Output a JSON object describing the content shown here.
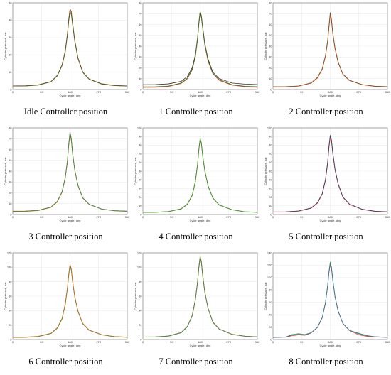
{
  "chart_data": [
    {
      "type": "line",
      "caption": "Idle Controller position",
      "xlabel": "Cycle angle, deg",
      "ylabel": "Cylinder pressure, bar",
      "xlim": [
        0,
        360
      ],
      "ylim": [
        0,
        50
      ],
      "xticks": [
        0,
        90,
        180,
        270,
        360
      ],
      "yticks": [
        0,
        10,
        20,
        30,
        40,
        50
      ],
      "grid": true,
      "x": [
        0,
        40,
        80,
        120,
        140,
        155,
        165,
        172,
        176,
        180,
        184,
        188,
        195,
        205,
        220,
        240,
        280,
        320,
        360
      ],
      "series": [
        {
          "color": "#e8402b",
          "values": [
            2.0,
            2.1,
            2.6,
            4.5,
            8.0,
            14.0,
            22.0,
            32.0,
            40.0,
            45.5,
            44.0,
            38.0,
            28.0,
            18.0,
            10.0,
            6.0,
            3.2,
            2.3,
            2.0
          ]
        },
        {
          "color": "#2f7a2f",
          "values": [
            2.0,
            2.0,
            2.5,
            4.4,
            7.8,
            13.8,
            21.6,
            31.5,
            39.5,
            44.5,
            43.2,
            37.4,
            27.6,
            17.8,
            9.9,
            5.9,
            3.1,
            2.2,
            2.0
          ]
        },
        {
          "color": "#7a4a1e",
          "values": [
            2.1,
            2.2,
            2.7,
            4.6,
            8.2,
            14.3,
            22.4,
            32.6,
            40.8,
            46.5,
            45.0,
            38.8,
            28.5,
            18.3,
            10.2,
            6.1,
            3.3,
            2.4,
            2.1
          ]
        }
      ]
    },
    {
      "type": "line",
      "caption": "1 Controller position",
      "xlabel": "Cycle angle, deg",
      "ylabel": "Cylinder pressure, bar",
      "xlim": [
        0,
        360
      ],
      "ylim": [
        0,
        80
      ],
      "xticks": [
        0,
        90,
        180,
        270,
        360
      ],
      "yticks": [
        0,
        10,
        20,
        30,
        40,
        50,
        60,
        70,
        80
      ],
      "grid": true,
      "x": [
        0,
        40,
        80,
        120,
        140,
        155,
        165,
        172,
        176,
        180,
        184,
        188,
        195,
        205,
        220,
        240,
        280,
        320,
        360
      ],
      "series": [
        {
          "color": "#3a2a1e",
          "values": [
            4.5,
            4.6,
            5.2,
            7.5,
            12.0,
            20.0,
            32.0,
            48.0,
            62.0,
            72.0,
            68.0,
            58.0,
            42.0,
            28.0,
            16.0,
            10.0,
            6.0,
            5.0,
            4.6
          ]
        },
        {
          "color": "#e8402b",
          "values": [
            2.0,
            2.1,
            2.8,
            5.5,
            10.0,
            18.0,
            30.0,
            46.0,
            60.0,
            70.0,
            66.0,
            56.0,
            40.0,
            26.0,
            14.5,
            8.5,
            4.0,
            2.6,
            2.1
          ]
        },
        {
          "color": "#2f7a2f",
          "values": [
            2.5,
            2.6,
            3.2,
            6.0,
            10.5,
            18.6,
            30.6,
            46.8,
            61.0,
            71.0,
            67.0,
            57.0,
            41.0,
            27.0,
            15.0,
            9.0,
            4.5,
            3.0,
            2.6
          ]
        }
      ]
    },
    {
      "type": "line",
      "caption": "2 Controller position",
      "xlabel": "Cycle angle, deg",
      "ylabel": "Cylinder pressure, bar",
      "xlim": [
        0,
        360
      ],
      "ylim": [
        0,
        80
      ],
      "xticks": [
        0,
        90,
        180,
        270,
        360
      ],
      "yticks": [
        0,
        10,
        20,
        30,
        40,
        50,
        60,
        70,
        80
      ],
      "grid": true,
      "x": [
        0,
        40,
        80,
        120,
        140,
        155,
        165,
        172,
        176,
        180,
        184,
        188,
        195,
        205,
        220,
        240,
        280,
        320,
        360
      ],
      "series": [
        {
          "color": "#3b9a3b",
          "values": [
            2.5,
            2.6,
            3.2,
            6.0,
            11.0,
            19.0,
            31.0,
            45.0,
            58.0,
            70.0,
            64.0,
            52.0,
            38.0,
            25.0,
            14.0,
            8.5,
            4.5,
            3.0,
            2.6
          ]
        },
        {
          "color": "#e8402b",
          "values": [
            2.4,
            2.5,
            3.1,
            5.8,
            10.7,
            18.6,
            30.5,
            44.3,
            57.0,
            68.5,
            62.8,
            51.2,
            37.4,
            24.6,
            13.8,
            8.4,
            4.4,
            2.9,
            2.5
          ]
        },
        {
          "color": "#7a5a2a",
          "values": [
            2.6,
            2.7,
            3.3,
            6.1,
            11.2,
            19.3,
            31.4,
            45.6,
            58.8,
            71.0,
            64.8,
            52.6,
            38.4,
            25.3,
            14.2,
            8.6,
            4.6,
            3.1,
            2.7
          ]
        }
      ]
    },
    {
      "type": "line",
      "caption": "3 Controller position",
      "xlabel": "Cycle angle, deg",
      "ylabel": "Cylinder pressure, bar",
      "xlim": [
        0,
        360
      ],
      "ylim": [
        0,
        80
      ],
      "xticks": [
        0,
        90,
        180,
        270,
        360
      ],
      "yticks": [
        0,
        10,
        20,
        30,
        40,
        50,
        60,
        70,
        80
      ],
      "grid": true,
      "x": [
        0,
        40,
        80,
        120,
        140,
        155,
        165,
        172,
        176,
        180,
        184,
        188,
        195,
        205,
        220,
        240,
        280,
        320,
        360
      ],
      "series": [
        {
          "color": "#3a3a6a",
          "values": [
            3.0,
            3.1,
            3.8,
            6.8,
            12.0,
            21.0,
            34.0,
            50.0,
            65.0,
            76.0,
            70.0,
            57.0,
            41.0,
            27.0,
            15.5,
            9.5,
            5.0,
            3.6,
            3.1
          ]
        },
        {
          "color": "#e8402b",
          "values": [
            2.8,
            2.9,
            3.6,
            6.6,
            11.7,
            20.6,
            33.4,
            49.2,
            63.8,
            73.5,
            68.5,
            56.0,
            40.4,
            26.6,
            15.2,
            9.3,
            4.9,
            3.4,
            2.9
          ]
        },
        {
          "color": "#3b9a3b",
          "values": [
            3.1,
            3.2,
            3.9,
            6.9,
            12.2,
            21.2,
            34.4,
            50.6,
            65.6,
            74.8,
            69.4,
            56.6,
            40.8,
            26.9,
            15.4,
            9.4,
            5.0,
            3.5,
            3.0
          ]
        }
      ]
    },
    {
      "type": "line",
      "caption": "4 Controller position",
      "xlabel": "Cycle angle, deg",
      "ylabel": "Cylinder pressure, bar",
      "xlim": [
        0,
        360
      ],
      "ylim": [
        0,
        100
      ],
      "xticks": [
        0,
        90,
        180,
        270,
        360
      ],
      "yticks": [
        0,
        10,
        20,
        30,
        40,
        50,
        60,
        70,
        80,
        90,
        100
      ],
      "grid": true,
      "x": [
        0,
        40,
        80,
        120,
        140,
        155,
        165,
        172,
        176,
        180,
        184,
        188,
        195,
        205,
        220,
        240,
        280,
        320,
        360
      ],
      "series": [
        {
          "color": "#e8402b",
          "values": [
            2.5,
            2.6,
            3.4,
            6.5,
            12.0,
            22.0,
            38.0,
            58.0,
            75.0,
            87.0,
            82.0,
            68.0,
            50.0,
            33.0,
            19.0,
            11.0,
            5.5,
            3.2,
            2.6
          ]
        },
        {
          "color": "#8a7a2a",
          "values": [
            2.4,
            2.5,
            3.3,
            6.3,
            11.7,
            21.6,
            37.3,
            57.0,
            74.0,
            86.0,
            81.0,
            67.2,
            49.4,
            32.6,
            18.8,
            10.9,
            5.4,
            3.1,
            2.5
          ]
        },
        {
          "color": "#3b9a3b",
          "values": [
            2.6,
            2.7,
            3.5,
            6.6,
            12.2,
            22.3,
            38.4,
            58.6,
            75.6,
            88.0,
            82.8,
            68.6,
            50.4,
            33.3,
            19.2,
            11.1,
            5.6,
            3.3,
            2.7
          ]
        }
      ]
    },
    {
      "type": "line",
      "caption": "5 Controller position",
      "xlabel": "Cycle angle, deg",
      "ylabel": "Cylinder pressure, bar",
      "xlim": [
        0,
        360
      ],
      "ylim": [
        0,
        100
      ],
      "xticks": [
        0,
        90,
        180,
        270,
        360
      ],
      "yticks": [
        0,
        10,
        20,
        30,
        40,
        50,
        60,
        70,
        80,
        90,
        100
      ],
      "grid": true,
      "x": [
        0,
        40,
        80,
        120,
        140,
        155,
        165,
        172,
        176,
        180,
        184,
        188,
        195,
        205,
        220,
        240,
        280,
        320,
        360
      ],
      "series": [
        {
          "color": "#2b8a7a",
          "values": [
            3.0,
            3.1,
            4.0,
            7.5,
            13.5,
            24.0,
            40.0,
            60.0,
            78.0,
            90.0,
            85.0,
            71.0,
            52.0,
            35.0,
            20.0,
            12.0,
            6.0,
            3.8,
            3.1
          ]
        },
        {
          "color": "#e8402b",
          "values": [
            2.8,
            2.9,
            3.8,
            7.2,
            13.1,
            23.5,
            39.2,
            59.0,
            76.8,
            88.5,
            83.8,
            70.0,
            51.3,
            34.5,
            19.7,
            11.8,
            5.9,
            3.6,
            2.9
          ]
        },
        {
          "color": "#3a3a6a",
          "values": [
            3.1,
            3.2,
            4.1,
            7.6,
            13.7,
            24.3,
            40.5,
            60.8,
            79.0,
            91.5,
            86.0,
            71.8,
            52.6,
            35.4,
            20.3,
            12.2,
            6.1,
            3.9,
            3.2
          ]
        }
      ]
    },
    {
      "type": "line",
      "caption": "6 Controller position",
      "xlabel": "Cycle angle, deg",
      "ylabel": "Cylinder pressure, bar",
      "xlim": [
        0,
        360
      ],
      "ylim": [
        0,
        120
      ],
      "xticks": [
        0,
        90,
        180,
        270,
        360
      ],
      "yticks": [
        0,
        20,
        40,
        60,
        80,
        100,
        120
      ],
      "grid": true,
      "x": [
        0,
        40,
        80,
        120,
        140,
        155,
        165,
        172,
        176,
        180,
        184,
        188,
        195,
        205,
        220,
        240,
        280,
        320,
        360
      ],
      "series": [
        {
          "color": "#e8402b",
          "values": [
            3.0,
            3.2,
            4.2,
            8.5,
            16.0,
            29.0,
            49.0,
            72.0,
            90.0,
            103.0,
            97.0,
            81.0,
            59.0,
            39.0,
            22.0,
            13.0,
            6.5,
            4.0,
            3.2
          ]
        },
        {
          "color": "#3b9a3b",
          "values": [
            2.8,
            3.0,
            4.0,
            8.2,
            15.6,
            28.4,
            48.0,
            70.8,
            88.8,
            101.5,
            95.8,
            80.0,
            58.3,
            38.5,
            21.7,
            12.8,
            6.4,
            3.8,
            3.0
          ]
        },
        {
          "color": "#c86a2a",
          "values": [
            3.2,
            3.4,
            4.4,
            8.7,
            16.3,
            29.4,
            49.6,
            72.8,
            91.0,
            104.0,
            98.0,
            81.8,
            59.6,
            39.4,
            22.3,
            13.2,
            6.6,
            4.2,
            3.4
          ]
        }
      ]
    },
    {
      "type": "line",
      "caption": "7 Controller position",
      "xlabel": "Cycle angle, deg",
      "ylabel": "Cylinder pressure, bar",
      "xlim": [
        0,
        360
      ],
      "ylim": [
        0,
        120
      ],
      "xticks": [
        0,
        90,
        180,
        270,
        360
      ],
      "yticks": [
        0,
        20,
        40,
        60,
        80,
        100,
        120
      ],
      "grid": true,
      "x": [
        0,
        40,
        80,
        120,
        140,
        155,
        165,
        172,
        176,
        180,
        184,
        188,
        195,
        205,
        220,
        240,
        280,
        320,
        360
      ],
      "series": [
        {
          "color": "#2b3a8a",
          "values": [
            3.5,
            3.7,
            4.8,
            9.5,
            18.0,
            33.0,
            55.0,
            80.0,
            100.0,
            114.0,
            107.0,
            89.0,
            65.0,
            43.0,
            24.0,
            14.5,
            7.2,
            4.6,
            3.7
          ]
        },
        {
          "color": "#2b8a7a",
          "values": [
            3.3,
            3.5,
            4.6,
            9.2,
            17.6,
            32.4,
            54.2,
            79.0,
            98.8,
            112.5,
            105.8,
            88.0,
            64.3,
            42.5,
            23.7,
            14.3,
            7.1,
            4.4,
            3.5
          ]
        },
        {
          "color": "#7a7a2a",
          "values": [
            3.6,
            3.8,
            4.9,
            9.7,
            18.3,
            33.4,
            55.6,
            80.8,
            101.0,
            115.5,
            108.0,
            89.8,
            65.6,
            43.4,
            24.3,
            14.7,
            7.3,
            4.7,
            3.8
          ]
        }
      ]
    },
    {
      "type": "line",
      "caption": "8 Controller position",
      "xlabel": "Cycle angle, deg",
      "ylabel": "Cylinder pressure, bar",
      "xlim": [
        0,
        360
      ],
      "ylim": [
        0,
        140
      ],
      "xticks": [
        0,
        90,
        180,
        270,
        360
      ],
      "yticks": [
        0,
        20,
        40,
        60,
        80,
        100,
        120,
        140
      ],
      "grid": true,
      "x": [
        0,
        40,
        60,
        80,
        100,
        120,
        140,
        155,
        165,
        172,
        176,
        180,
        184,
        188,
        195,
        205,
        220,
        240,
        270,
        300,
        320,
        360
      ],
      "series": [
        {
          "color": "#3b9a3b",
          "values": [
            3.5,
            4.0,
            8.0,
            9.5,
            8.0,
            11.0,
            20.0,
            36.0,
            60.0,
            88.0,
            110.0,
            125.0,
            117.0,
            97.0,
            70.0,
            46.0,
            26.0,
            15.0,
            9.0,
            5.5,
            4.5,
            3.6
          ]
        },
        {
          "color": "#e8402b",
          "values": [
            3.3,
            3.8,
            6.0,
            7.5,
            6.8,
            10.5,
            19.4,
            35.2,
            58.8,
            86.6,
            107.8,
            120.0,
            114.0,
            95.2,
            68.6,
            45.2,
            25.5,
            14.7,
            7.5,
            4.8,
            4.2,
            3.4
          ]
        },
        {
          "color": "#2b7aaa",
          "values": [
            3.6,
            4.2,
            7.0,
            8.5,
            7.5,
            10.8,
            19.8,
            35.6,
            59.4,
            87.4,
            109.0,
            122.5,
            115.5,
            96.0,
            69.3,
            45.6,
            25.8,
            14.9,
            10.0,
            6.0,
            4.6,
            3.7
          ]
        }
      ]
    }
  ]
}
